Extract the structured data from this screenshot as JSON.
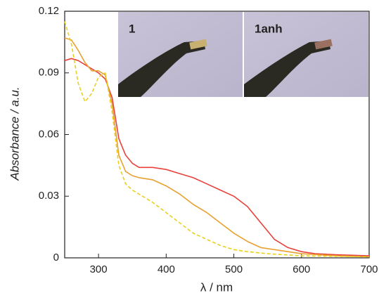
{
  "chart_data": {
    "type": "line",
    "xlabel": "λ / nm",
    "ylabel": "Absorbance / a.u.",
    "xlim": [
      250,
      700
    ],
    "xticks": [
      300,
      400,
      500,
      600,
      700
    ],
    "ylim": [
      0,
      0.12
    ],
    "yticks": [
      0,
      0.03,
      0.06,
      0.09,
      0.12
    ],
    "annotations": [
      {
        "text": "1",
        "color": "#e8a030"
      },
      {
        "text": "1anh",
        "color": "#e8413c"
      }
    ],
    "series": [
      {
        "color": "#e8413c",
        "style": "solid",
        "x": [
          250,
          260,
          270,
          280,
          290,
          300,
          310,
          320,
          330,
          340,
          350,
          360,
          370,
          380,
          400,
          420,
          440,
          460,
          480,
          500,
          520,
          540,
          560,
          580,
          600,
          620,
          650,
          700
        ],
        "values": [
          0.096,
          0.097,
          0.096,
          0.094,
          0.092,
          0.09,
          0.087,
          0.078,
          0.058,
          0.05,
          0.046,
          0.044,
          0.044,
          0.044,
          0.043,
          0.041,
          0.039,
          0.036,
          0.033,
          0.03,
          0.025,
          0.017,
          0.009,
          0.005,
          0.003,
          0.002,
          0.0015,
          0.001
        ]
      },
      {
        "color": "#e8a030",
        "style": "solid",
        "x": [
          250,
          260,
          270,
          280,
          290,
          300,
          310,
          320,
          330,
          340,
          350,
          360,
          380,
          400,
          420,
          440,
          460,
          480,
          500,
          520,
          540,
          560,
          580,
          600,
          650,
          700
        ],
        "values": [
          0.107,
          0.106,
          0.101,
          0.095,
          0.091,
          0.091,
          0.089,
          0.075,
          0.05,
          0.042,
          0.04,
          0.039,
          0.038,
          0.035,
          0.031,
          0.026,
          0.022,
          0.017,
          0.012,
          0.008,
          0.005,
          0.004,
          0.003,
          0.002,
          0.001,
          0.0005
        ]
      },
      {
        "color": "#e8d020",
        "style": "dashed",
        "x": [
          250,
          260,
          270,
          280,
          290,
          300,
          310,
          320,
          330,
          340,
          350,
          360,
          380,
          400,
          420,
          440,
          460,
          480,
          500,
          520,
          550,
          600,
          700
        ],
        "values": [
          0.115,
          0.104,
          0.085,
          0.076,
          0.08,
          0.088,
          0.09,
          0.071,
          0.045,
          0.036,
          0.033,
          0.031,
          0.027,
          0.022,
          0.017,
          0.012,
          0.009,
          0.006,
          0.004,
          0.003,
          0.002,
          0.001,
          0.0005
        ]
      }
    ]
  }
}
